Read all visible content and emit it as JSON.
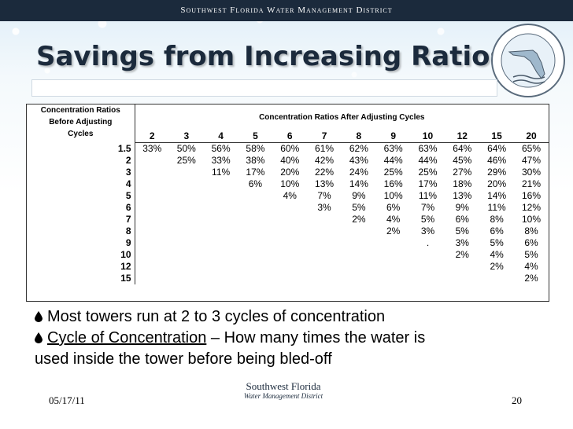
{
  "header": {
    "org": "Southwest Florida Water Management District"
  },
  "title": "Savings from Increasing Ratios",
  "table": {
    "corner_label_lines": [
      "Concentration Ratios",
      "Before Adjusting",
      "Cycles"
    ],
    "span_header": "Concentration Ratios After Adjusting Cycles",
    "columns": [
      "2",
      "3",
      "4",
      "5",
      "6",
      "7",
      "8",
      "9",
      "10",
      "12",
      "15",
      "20"
    ],
    "rows": [
      {
        "label": "1.5",
        "cells": [
          "33%",
          "50%",
          "56%",
          "58%",
          "60%",
          "61%",
          "62%",
          "63%",
          "63%",
          "64%",
          "64%",
          "65%"
        ]
      },
      {
        "label": "2",
        "cells": [
          "",
          "25%",
          "33%",
          "38%",
          "40%",
          "42%",
          "43%",
          "44%",
          "44%",
          "45%",
          "46%",
          "47%"
        ]
      },
      {
        "label": "3",
        "cells": [
          "",
          "",
          "11%",
          "17%",
          "20%",
          "22%",
          "24%",
          "25%",
          "25%",
          "27%",
          "29%",
          "30%"
        ]
      },
      {
        "label": "4",
        "cells": [
          "",
          "",
          "",
          "6%",
          "10%",
          "13%",
          "14%",
          "16%",
          "17%",
          "18%",
          "20%",
          "21%"
        ]
      },
      {
        "label": "5",
        "cells": [
          "",
          "",
          "",
          "",
          "4%",
          "7%",
          "9%",
          "10%",
          "11%",
          "13%",
          "14%",
          "16%"
        ]
      },
      {
        "label": "6",
        "cells": [
          "",
          "",
          "",
          "",
          "",
          "3%",
          "5%",
          "6%",
          "7%",
          "9%",
          "11%",
          "12%"
        ]
      },
      {
        "label": "7",
        "cells": [
          "",
          "",
          "",
          "",
          "",
          "",
          "2%",
          "4%",
          "5%",
          "6%",
          "8%",
          "10%"
        ]
      },
      {
        "label": "8",
        "cells": [
          "",
          "",
          "",
          "",
          "",
          "",
          "",
          "2%",
          "3%",
          "5%",
          "6%",
          "8%"
        ]
      },
      {
        "label": "9",
        "cells": [
          "",
          "",
          "",
          "",
          "",
          "",
          "",
          "",
          ".",
          "3%",
          "5%",
          "6%"
        ]
      },
      {
        "label": "10",
        "cells": [
          "",
          "",
          "",
          "",
          "",
          "",
          "",
          "",
          "",
          "2%",
          "4%",
          "5%"
        ]
      },
      {
        "label": "12",
        "cells": [
          "",
          "",
          "",
          "",
          "",
          "",
          "",
          "",
          "",
          "",
          "2%",
          "4%"
        ]
      },
      {
        "label": "15",
        "cells": [
          "",
          "",
          "",
          "",
          "",
          "",
          "",
          "",
          "",
          "",
          "",
          "2%"
        ]
      }
    ]
  },
  "bullets": {
    "b1": "Most towers run at 2 to 3 cycles of concentration",
    "b2_link": "Cycle of Concentration",
    "b2_rest": " – How many times the water is",
    "b2_line2": "used inside the tower before being bled-off"
  },
  "footer": {
    "date": "05/17/11",
    "page": "20",
    "logo_line1": "Southwest Florida",
    "logo_line2": "Water Management District"
  },
  "colors": {
    "navy": "#1b2a3c",
    "accent": "#2a6fb0"
  }
}
